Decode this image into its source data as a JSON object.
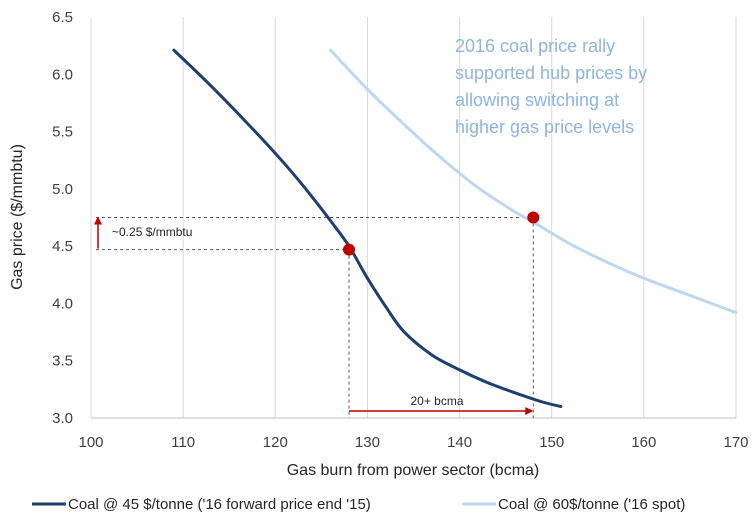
{
  "chart_data": {
    "type": "line",
    "xlabel": "Gas burn from power sector (bcma)",
    "ylabel": "Gas price ($/mmbtu)",
    "xlim": [
      100,
      170
    ],
    "ylim": [
      3.0,
      6.5
    ],
    "x_ticks": [
      "100",
      "110",
      "120",
      "130",
      "140",
      "150",
      "160",
      "170"
    ],
    "y_ticks": [
      "3.0",
      "3.5",
      "4.0",
      "4.5",
      "5.0",
      "5.5",
      "6.0",
      "6.5"
    ],
    "grid": "vertical",
    "legend_position": "bottom",
    "series": [
      {
        "name": "Coal @ 45 $/tonne ('16 forward price end '15)",
        "color": "#1f3f6e",
        "points": [
          [
            109,
            6.21
          ],
          [
            113,
            5.9
          ],
          [
            117,
            5.57
          ],
          [
            121,
            5.22
          ],
          [
            124,
            4.93
          ],
          [
            126,
            4.72
          ],
          [
            128,
            4.5
          ],
          [
            130,
            4.22
          ],
          [
            132,
            3.97
          ],
          [
            134,
            3.75
          ],
          [
            137,
            3.55
          ],
          [
            140,
            3.42
          ],
          [
            143,
            3.31
          ],
          [
            146,
            3.22
          ],
          [
            149,
            3.14
          ],
          [
            151,
            3.1
          ]
        ]
      },
      {
        "name": "Coal @ 60$/tonne ('16 spot)",
        "color": "#bdd7ee",
        "points": [
          [
            126,
            6.21
          ],
          [
            130,
            5.87
          ],
          [
            134,
            5.56
          ],
          [
            138,
            5.27
          ],
          [
            142,
            5.01
          ],
          [
            146,
            4.8
          ],
          [
            148,
            4.71
          ],
          [
            152,
            4.52
          ],
          [
            156,
            4.36
          ],
          [
            160,
            4.22
          ],
          [
            165,
            4.07
          ],
          [
            170,
            3.92
          ]
        ]
      }
    ],
    "highlight_points": [
      {
        "x": 128,
        "y": 4.47,
        "color": "#c00000"
      },
      {
        "x": 148,
        "y": 4.75,
        "color": "#c00000"
      }
    ],
    "annotations": {
      "price_gap_label": "~0.25 $/mmbtu",
      "volume_gap_label": "20+ bcma",
      "callout_lines": [
        "2016 coal price rally",
        "supported hub prices by",
        "allowing switching at",
        "higher gas price levels"
      ],
      "callout_color": "#8eb4e3",
      "arrow_color": "#c00000"
    }
  }
}
